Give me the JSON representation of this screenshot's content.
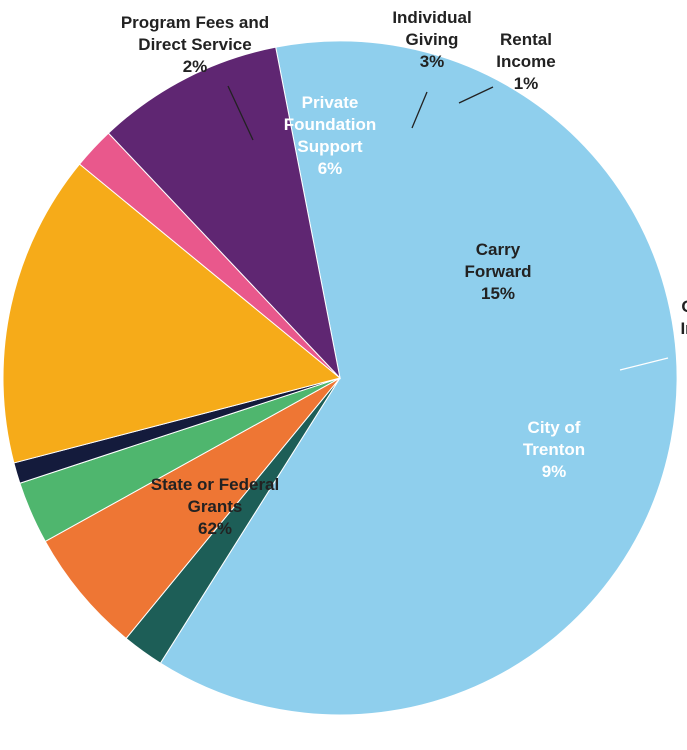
{
  "chart_data": {
    "type": "pie",
    "slices": [
      {
        "name": "State or Federal Grants",
        "lines": [
          "State or Federal",
          "Grants"
        ],
        "pct_label": "62%",
        "value": 62,
        "color": "#8fcfed"
      },
      {
        "name": "Program Fees and Direct Service",
        "lines": [
          "Program Fees and",
          "Direct Service"
        ],
        "pct_label": "2%",
        "value": 2,
        "color": "#1d5e57"
      },
      {
        "name": "Private Foundation Support",
        "lines": [
          "Private",
          "Foundation",
          "Support"
        ],
        "pct_label": "6%",
        "value": 6,
        "color": "#ee7634"
      },
      {
        "name": "Individual Giving",
        "lines": [
          "Individual",
          "Giving"
        ],
        "pct_label": "3%",
        "value": 3,
        "color": "#4fb66e"
      },
      {
        "name": "Rental Income",
        "lines": [
          "Rental",
          "Income"
        ],
        "pct_label": "1%",
        "value": 1,
        "color": "#141b3c"
      },
      {
        "name": "Carry Forward",
        "lines": [
          "Carry",
          "Forward"
        ],
        "pct_label": "15%",
        "value": 15,
        "color": "#f6ab19"
      },
      {
        "name": "Other Income",
        "lines": [
          "O",
          "In"
        ],
        "pct_label": "",
        "value": 2,
        "color": "#e9588c"
      },
      {
        "name": "City of Trenton",
        "lines": [
          "City of",
          "Trenton"
        ],
        "pct_label": "9%",
        "value": 9,
        "color": "#5f2672"
      }
    ]
  }
}
